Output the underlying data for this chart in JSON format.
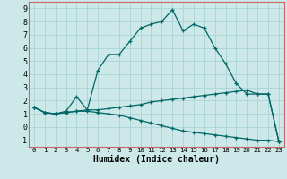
{
  "title": "",
  "xlabel": "Humidex (Indice chaleur)",
  "background_color": "#cce8e8",
  "grid_color": "#aad4d4",
  "line_color": "#006666",
  "spine_color": "#cc6666",
  "xlim": [
    -0.5,
    23.5
  ],
  "ylim": [
    -1.5,
    9.5
  ],
  "xticks": [
    0,
    1,
    2,
    3,
    4,
    5,
    6,
    7,
    8,
    9,
    10,
    11,
    12,
    13,
    14,
    15,
    16,
    17,
    18,
    19,
    20,
    21,
    22,
    23
  ],
  "yticks": [
    -1,
    0,
    1,
    2,
    3,
    4,
    5,
    6,
    7,
    8,
    9
  ],
  "series": [
    [
      1.5,
      1.1,
      1.0,
      1.2,
      2.3,
      1.3,
      4.3,
      5.5,
      5.5,
      6.5,
      7.5,
      7.8,
      8.0,
      8.9,
      7.3,
      7.8,
      7.5,
      6.0,
      4.8,
      3.3,
      2.5,
      2.5,
      2.5,
      -1.1
    ],
    [
      1.5,
      1.1,
      1.0,
      1.1,
      1.2,
      1.3,
      1.3,
      1.4,
      1.5,
      1.6,
      1.7,
      1.9,
      2.0,
      2.1,
      2.2,
      2.3,
      2.4,
      2.5,
      2.6,
      2.7,
      2.8,
      2.5,
      2.5,
      -1.1
    ],
    [
      1.5,
      1.1,
      1.0,
      1.1,
      1.2,
      1.2,
      1.1,
      1.0,
      0.9,
      0.7,
      0.5,
      0.3,
      0.1,
      -0.1,
      -0.3,
      -0.4,
      -0.5,
      -0.6,
      -0.7,
      -0.8,
      -0.9,
      -1.0,
      -1.0,
      -1.1
    ]
  ]
}
